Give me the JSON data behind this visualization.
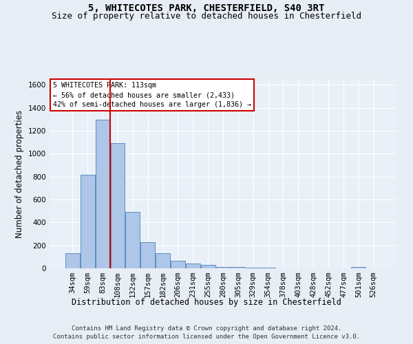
{
  "title1": "5, WHITECOTES PARK, CHESTERFIELD, S40 3RT",
  "title2": "Size of property relative to detached houses in Chesterfield",
  "xlabel": "Distribution of detached houses by size in Chesterfield",
  "ylabel": "Number of detached properties",
  "footer1": "Contains HM Land Registry data © Crown copyright and database right 2024.",
  "footer2": "Contains public sector information licensed under the Open Government Licence v3.0.",
  "bar_labels": [
    "34sqm",
    "59sqm",
    "83sqm",
    "108sqm",
    "132sqm",
    "157sqm",
    "182sqm",
    "206sqm",
    "231sqm",
    "255sqm",
    "280sqm",
    "305sqm",
    "329sqm",
    "354sqm",
    "378sqm",
    "403sqm",
    "428sqm",
    "452sqm",
    "477sqm",
    "501sqm",
    "526sqm"
  ],
  "bar_values": [
    135,
    815,
    1295,
    1090,
    495,
    230,
    130,
    65,
    40,
    28,
    15,
    10,
    8,
    5,
    3,
    2,
    2,
    2,
    2,
    10,
    2
  ],
  "bar_color": "#aec6e8",
  "bar_edge_color": "#5a8fc2",
  "ylim": [
    0,
    1650
  ],
  "yticks": [
    0,
    200,
    400,
    600,
    800,
    1000,
    1200,
    1400,
    1600
  ],
  "property_bin_index": 3,
  "vline_color": "#cc0000",
  "annotation_text1": "5 WHITECOTES PARK: 113sqm",
  "annotation_text2": "← 56% of detached houses are smaller (2,433)",
  "annotation_text3": "42% of semi-detached houses are larger (1,836) →",
  "annotation_box_color": "#ffffff",
  "annotation_box_edge": "#cc0000",
  "bg_color": "#e8eef5",
  "plot_bg_color": "#eaf0f8",
  "grid_color": "#ffffff",
  "title1_fontsize": 10,
  "title2_fontsize": 9,
  "axis_label_fontsize": 8.5,
  "tick_fontsize": 7.5,
  "footer_fontsize": 6.5
}
